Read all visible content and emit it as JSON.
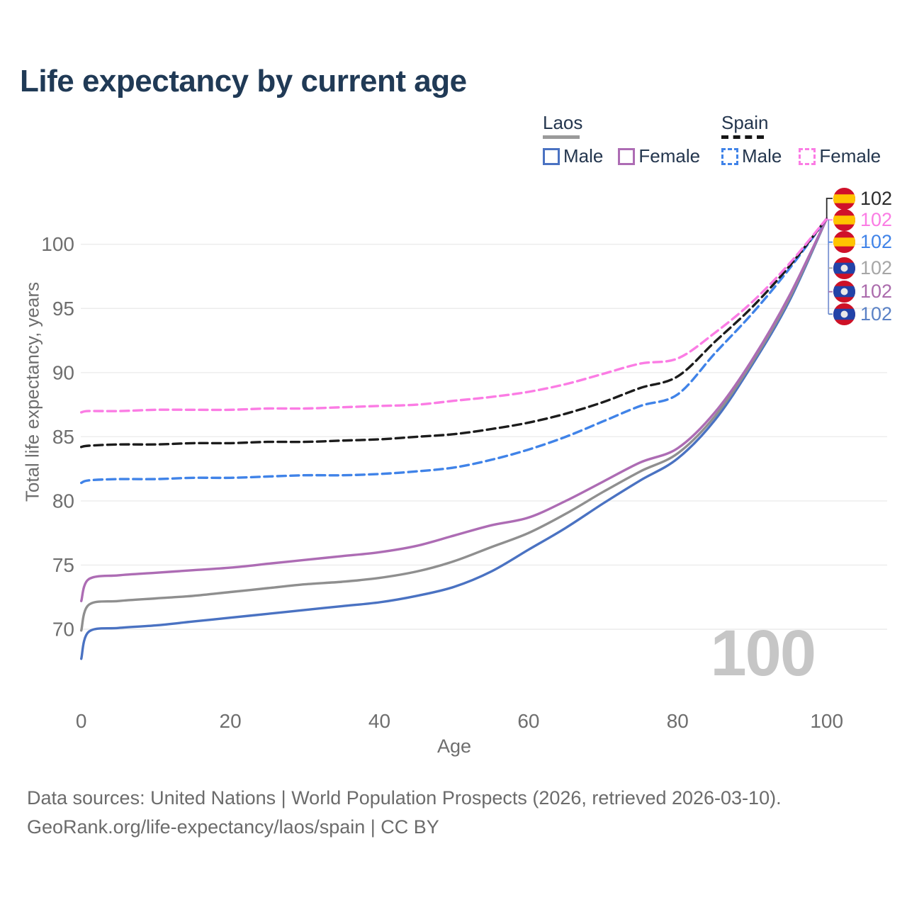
{
  "title": "Life expectancy by current age",
  "legend": {
    "laos": {
      "title": "Laos",
      "male": "Male",
      "female": "Female"
    },
    "spain": {
      "title": "Spain",
      "male": "Male",
      "female": "Female"
    }
  },
  "watermark_age": "100",
  "footer": {
    "line1": "Data sources: United Nations | World Population Prospects (2026, retrieved 2026-03-10).",
    "line2": "GeoRank.org/life-expectancy/laos/spain | CC BY"
  },
  "chart_data": {
    "type": "line",
    "title": "Life expectancy by current age",
    "xlabel": "Age",
    "ylabel": "Total life expectancy, years",
    "xlim": [
      0,
      100
    ],
    "ylim": [
      66,
      103
    ],
    "xticks": [
      0,
      20,
      40,
      60,
      80,
      100
    ],
    "yticks": [
      70,
      75,
      80,
      85,
      90,
      95,
      100
    ],
    "grid": "horizontal",
    "legend_position": "top-right",
    "ages": [
      0,
      1,
      5,
      10,
      15,
      20,
      25,
      30,
      35,
      40,
      45,
      50,
      55,
      60,
      65,
      70,
      75,
      80,
      85,
      90,
      95,
      100
    ],
    "series": [
      {
        "name": "Laos Male",
        "country": "Laos",
        "style": "solid",
        "color": "#4a72c2",
        "values": [
          67.7,
          69.8,
          70.1,
          70.3,
          70.6,
          70.9,
          71.2,
          71.5,
          71.8,
          72.1,
          72.6,
          73.3,
          74.5,
          76.2,
          77.9,
          79.8,
          81.6,
          83.3,
          86.3,
          90.6,
          95.6,
          102
        ]
      },
      {
        "name": "Laos Both sexes",
        "country": "Laos",
        "style": "solid",
        "color": "#8f8f8f",
        "values": [
          69.9,
          71.9,
          72.2,
          72.4,
          72.6,
          72.9,
          73.2,
          73.5,
          73.7,
          74.0,
          74.5,
          75.3,
          76.4,
          77.5,
          79.0,
          80.7,
          82.3,
          83.7,
          86.6,
          90.8,
          95.8,
          102
        ]
      },
      {
        "name": "Laos Female",
        "country": "Laos",
        "style": "solid",
        "color": "#ad6cb4",
        "values": [
          72.2,
          73.9,
          74.2,
          74.4,
          74.6,
          74.8,
          75.1,
          75.4,
          75.7,
          76.0,
          76.5,
          77.3,
          78.1,
          78.7,
          80.0,
          81.5,
          83.0,
          84.1,
          86.9,
          91.0,
          96.0,
          102
        ]
      },
      {
        "name": "Spain Male",
        "country": "Spain",
        "style": "dashed",
        "color": "#4083e8",
        "values": [
          81.4,
          81.6,
          81.7,
          81.7,
          81.8,
          81.8,
          81.9,
          82.0,
          82.0,
          82.1,
          82.3,
          82.6,
          83.2,
          84.0,
          85.0,
          86.2,
          87.4,
          88.3,
          91.5,
          94.6,
          98.1,
          102
        ]
      },
      {
        "name": "Spain Both sexes",
        "country": "Spain",
        "style": "dashed",
        "color": "#1c1c1c",
        "values": [
          84.2,
          84.3,
          84.4,
          84.4,
          84.5,
          84.5,
          84.6,
          84.6,
          84.7,
          84.8,
          85.0,
          85.2,
          85.6,
          86.1,
          86.8,
          87.7,
          88.8,
          89.7,
          92.4,
          95.1,
          98.3,
          102
        ]
      },
      {
        "name": "Spain Female",
        "country": "Spain",
        "style": "dashed",
        "color": "#fb7ce4",
        "values": [
          86.9,
          87.0,
          87.0,
          87.1,
          87.1,
          87.1,
          87.2,
          87.2,
          87.3,
          87.4,
          87.5,
          87.8,
          88.1,
          88.5,
          89.1,
          89.9,
          90.7,
          91.1,
          93.1,
          95.5,
          98.5,
          102
        ]
      }
    ],
    "end_labels": [
      {
        "country": "Spain",
        "series": "Spain Both sexes",
        "value": "102",
        "color": "#2a2a2a"
      },
      {
        "country": "Spain",
        "series": "Spain Female",
        "value": "102",
        "color": "#fb7ce4"
      },
      {
        "country": "Spain",
        "series": "Spain Male",
        "value": "102",
        "color": "#4083e8"
      },
      {
        "country": "Laos",
        "series": "Laos Both sexes",
        "value": "102",
        "color": "#a6a6a6"
      },
      {
        "country": "Laos",
        "series": "Laos Female",
        "value": "102",
        "color": "#ab6bac"
      },
      {
        "country": "Laos",
        "series": "Laos Male",
        "value": "102",
        "color": "#5b82c6"
      }
    ]
  }
}
